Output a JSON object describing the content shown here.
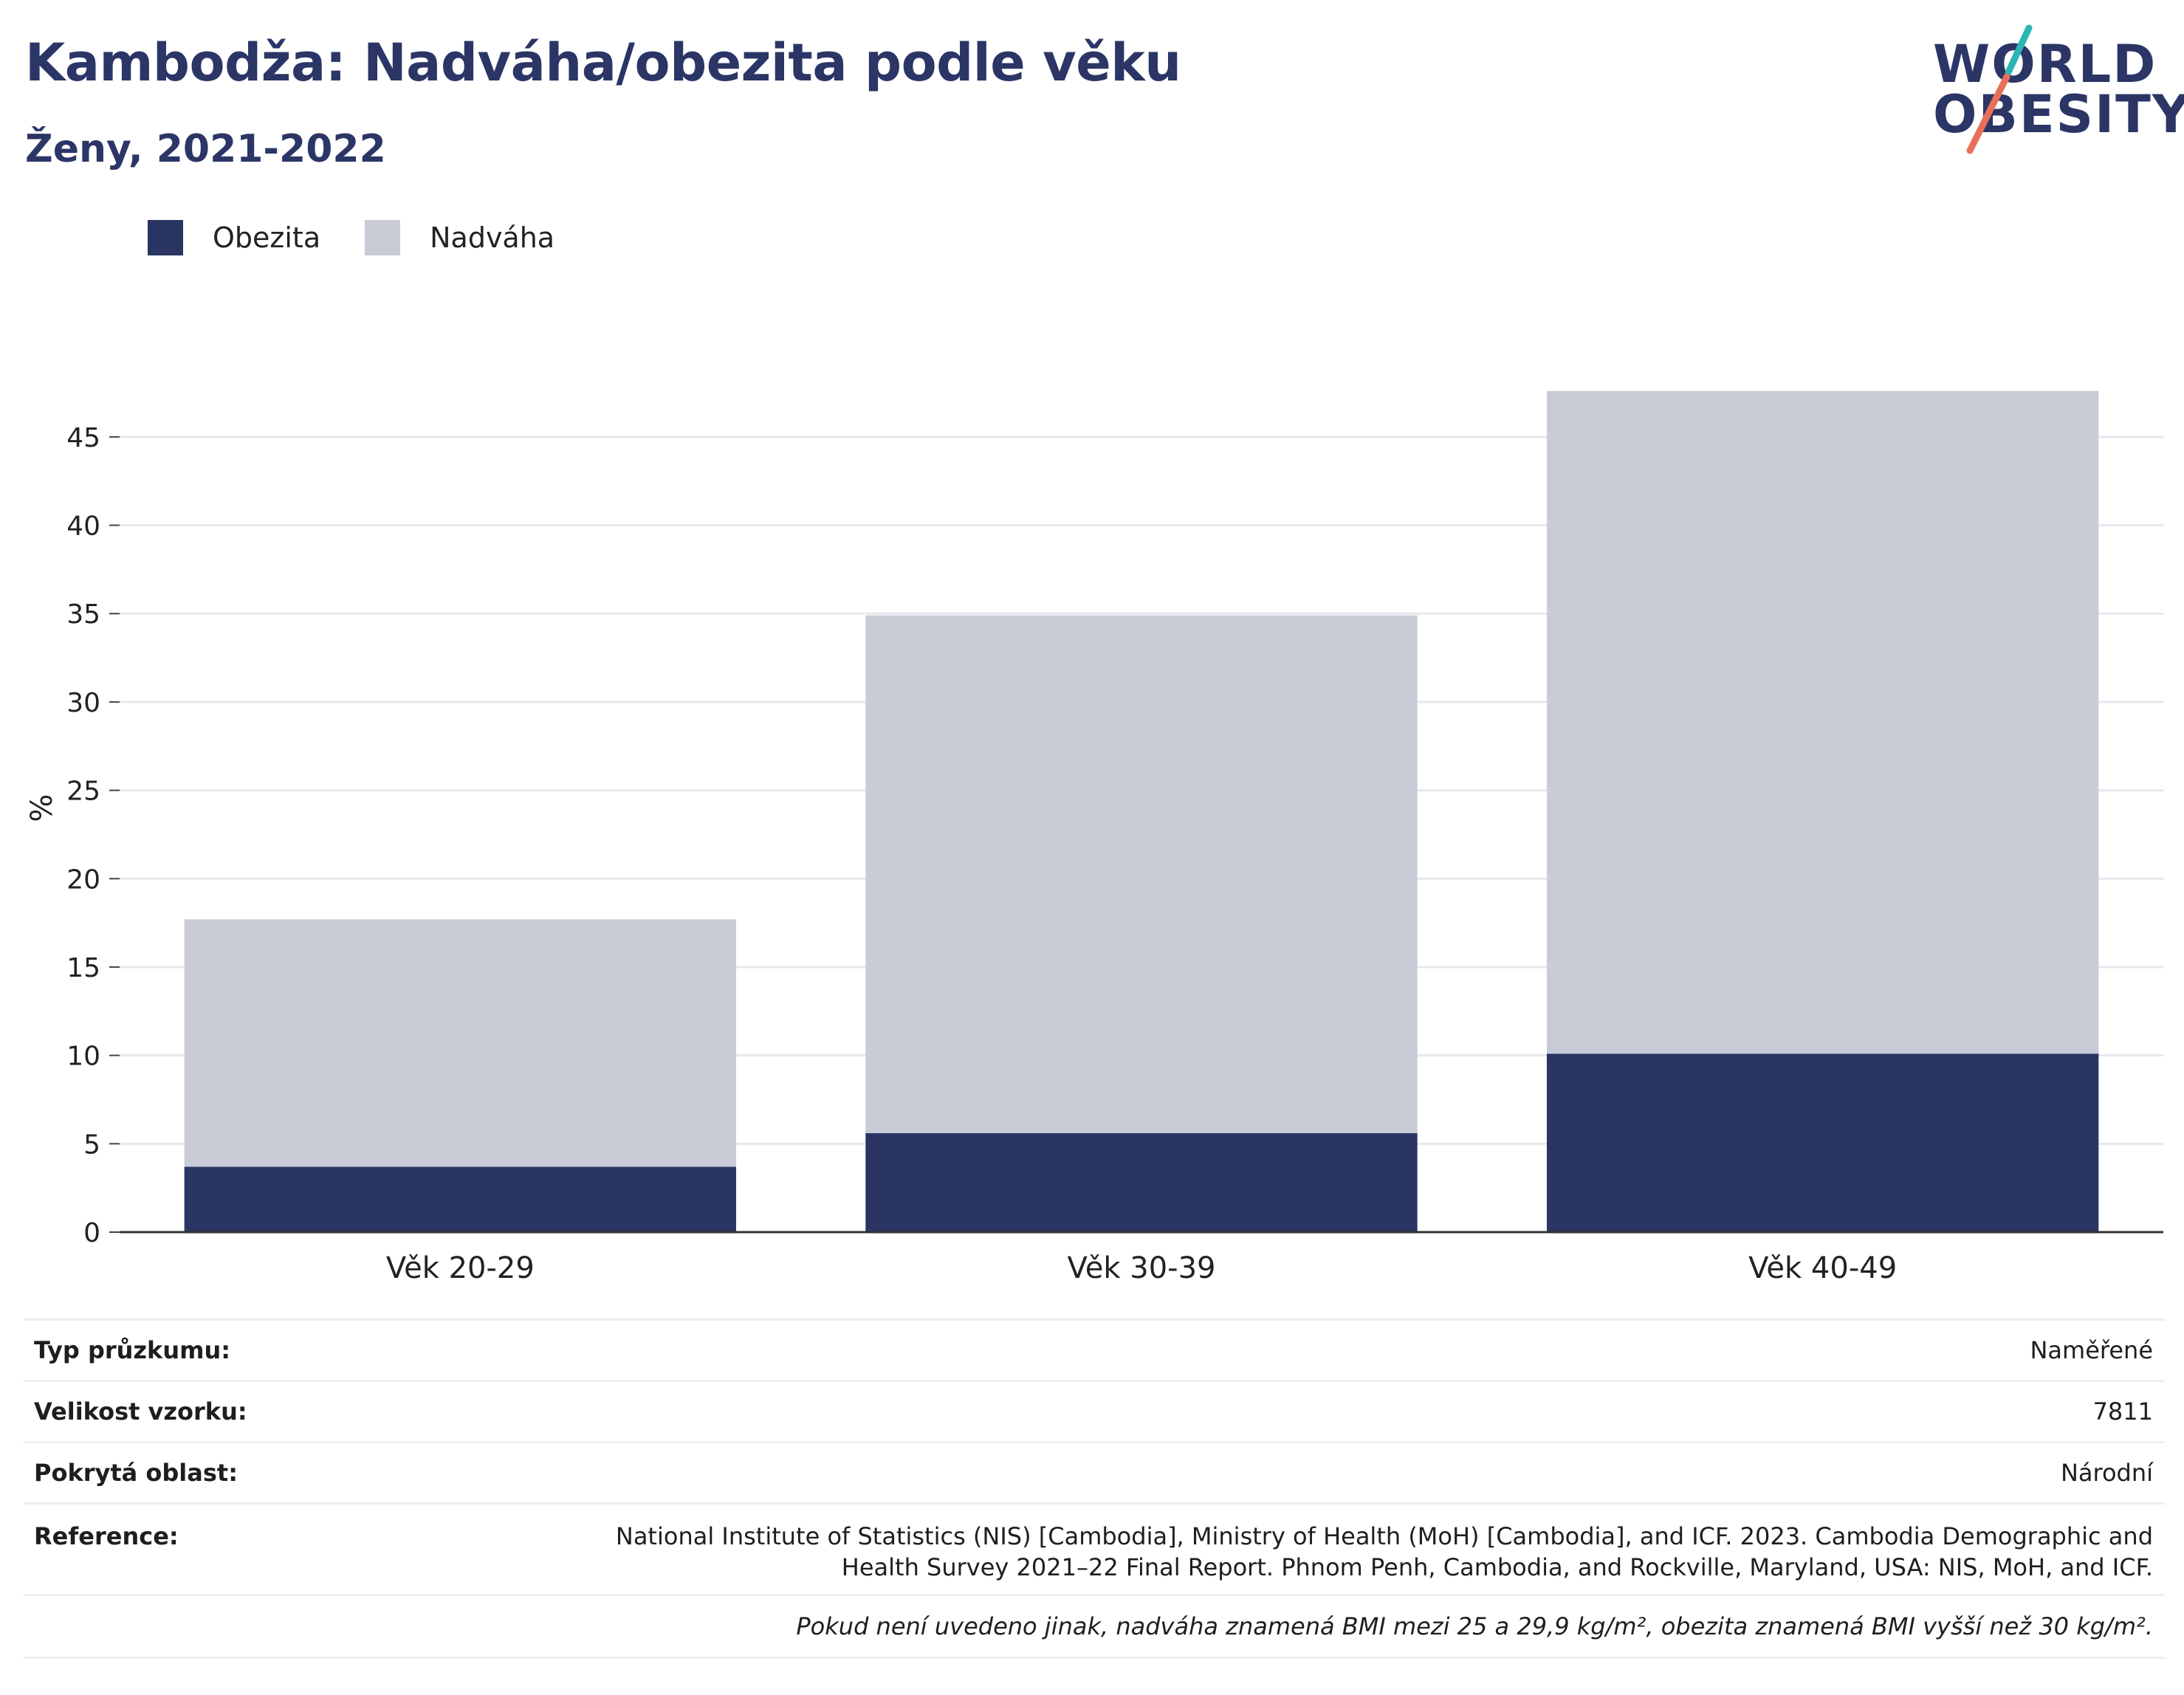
{
  "header": {
    "title": "Kambodža: Nadváha/obezita podle věku",
    "subtitle": "Ženy, 2021-2022"
  },
  "logo": {
    "line1": "WORLD",
    "line2": "OBESITY",
    "colors": {
      "text": "#2b3566",
      "slash_top": "#2bb5b5",
      "slash_bottom": "#e8705a"
    }
  },
  "legend": {
    "items": [
      {
        "label": "Obezita",
        "color": "#2a3563"
      },
      {
        "label": "Nadváha",
        "color": "#c9cbd7"
      }
    ]
  },
  "chart_data": {
    "type": "bar",
    "stacked": true,
    "categories": [
      "Věk 20-29",
      "Věk 30-39",
      "Věk 40-49"
    ],
    "series": [
      {
        "name": "Obezita",
        "values": [
          3.7,
          5.6,
          10.1
        ],
        "color": "#2a3563"
      },
      {
        "name": "Nadváha",
        "values": [
          14.0,
          29.3,
          37.5
        ],
        "color": "#c9cbd7"
      }
    ],
    "ylabel": "%",
    "xlabel": "",
    "ylim": [
      0,
      48
    ],
    "yticks": [
      0,
      5,
      10,
      15,
      20,
      25,
      30,
      35,
      40,
      45
    ],
    "grid": true,
    "legend_position": "top-left"
  },
  "info": {
    "rows": [
      {
        "key": "Typ průzkumu:",
        "value": "Naměřené"
      },
      {
        "key": "Velikost vzorku:",
        "value": "7811"
      },
      {
        "key": "Pokrytá oblast:",
        "value": "Národní"
      },
      {
        "key": "Reference:",
        "value_lines": [
          "National Institute of Statistics (NIS) [Cambodia], Ministry of Health (MoH) [Cambodia], and ICF. 2023. Cambodia Demographic and",
          "Health Survey 2021–22 Final Report. Phnom Penh, Cambodia, and Rockville, Maryland, USA: NIS, MoH, and ICF."
        ]
      }
    ],
    "note": "Pokud není uvedeno jinak, nadváha znamená BMI mezi 25 a 29,9 kg/m², obezita znamená BMI vyšší než 30 kg/m²."
  }
}
